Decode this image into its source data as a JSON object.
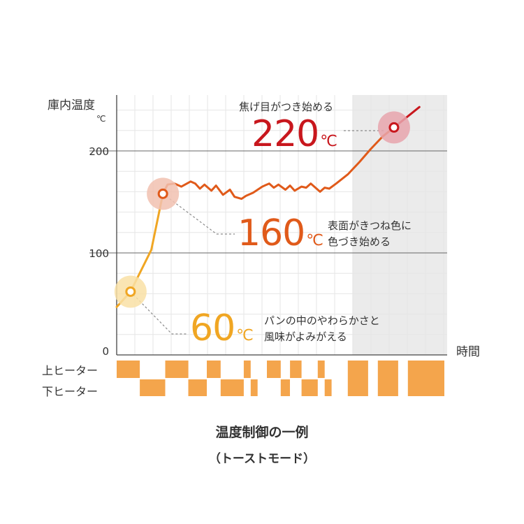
{
  "chart_data": {
    "type": "line",
    "ylabel": "庫内温度",
    "yunit": "℃",
    "xlabel": "時間",
    "ylim": [
      0,
      245
    ],
    "yticks": [
      0,
      100,
      200
    ],
    "series": [
      {
        "color": "#f0a623",
        "points": [
          [
            0,
            47
          ],
          [
            6,
            62
          ],
          [
            15,
            103
          ],
          [
            20,
            158
          ]
        ]
      },
      {
        "color": "#e05a1a",
        "points": [
          [
            20,
            158
          ],
          [
            22,
            167
          ],
          [
            25,
            168
          ],
          [
            28,
            165
          ],
          [
            32,
            170
          ],
          [
            34,
            168
          ],
          [
            36,
            163
          ],
          [
            38,
            167
          ],
          [
            41,
            161
          ],
          [
            43,
            166
          ],
          [
            46,
            157
          ],
          [
            49,
            162
          ],
          [
            51,
            155
          ],
          [
            54,
            153
          ],
          [
            56,
            156
          ],
          [
            59,
            159
          ],
          [
            61,
            162
          ],
          [
            63,
            165
          ],
          [
            66,
            168
          ],
          [
            68,
            164
          ],
          [
            70,
            167
          ],
          [
            73,
            162
          ],
          [
            75,
            166
          ],
          [
            77,
            161
          ],
          [
            80,
            165
          ],
          [
            82,
            164
          ],
          [
            84,
            168
          ],
          [
            86,
            164
          ],
          [
            88,
            160
          ],
          [
            90,
            164
          ],
          [
            92,
            163
          ],
          [
            95,
            168
          ],
          [
            100,
            177
          ],
          [
            105,
            189
          ],
          [
            110,
            202
          ],
          [
            115,
            214
          ],
          [
            120,
            223
          ]
        ]
      },
      {
        "color": "#c8171d",
        "points": [
          [
            120,
            223
          ],
          [
            131,
            243
          ]
        ]
      }
    ],
    "shaded_x": [
      102,
      143
    ],
    "annotations": [
      {
        "value": "60",
        "unit": "℃",
        "color": "#f0a623",
        "text_lines": [
          "パンの中のやわらかさと",
          "風味がよみがえる"
        ]
      },
      {
        "value": "160",
        "unit": "℃",
        "color": "#e05a1a",
        "text_lines": [
          "表面がきつね色に",
          "色づき始める"
        ]
      },
      {
        "value": "220",
        "unit": "℃",
        "color": "#c8171d",
        "text_lines": [
          "焦げ目がつき始める"
        ]
      }
    ],
    "heaters": {
      "color": "#f4a54c",
      "upper": {
        "label": "上ヒーター",
        "on": [
          [
            0,
            10
          ],
          [
            21,
            31
          ],
          [
            39,
            45
          ],
          [
            55,
            58
          ],
          [
            65,
            71
          ],
          [
            75,
            80
          ],
          [
            87,
            90
          ],
          [
            100,
            110
          ],
          [
            113,
            123
          ],
          [
            126,
            143
          ]
        ]
      },
      "lower": {
        "label": "下ヒーター",
        "on": [
          [
            10,
            21
          ],
          [
            31,
            39
          ],
          [
            45,
            55
          ],
          [
            58,
            61
          ],
          [
            71,
            75
          ],
          [
            80,
            87
          ],
          [
            90,
            93
          ],
          [
            100,
            110
          ],
          [
            113,
            123
          ],
          [
            126,
            143
          ]
        ]
      }
    }
  },
  "caption": {
    "title": "温度制御の一例",
    "subtitle": "（トーストモード）"
  }
}
